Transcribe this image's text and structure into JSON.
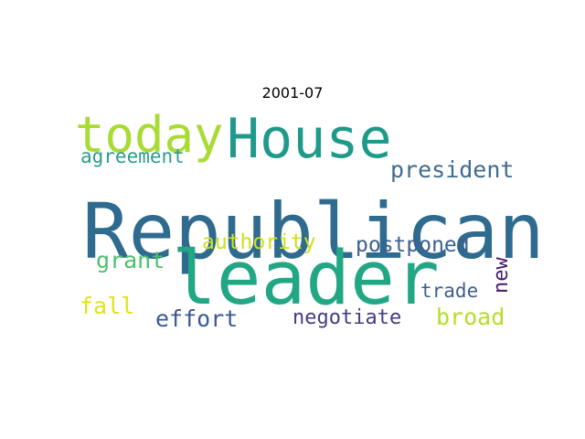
{
  "chart_data": {
    "type": "wordcloud",
    "title": "2001-07",
    "words": [
      {
        "text": "Republican",
        "weight": 1.0,
        "color": "#2f6a8f",
        "rotated": false
      },
      {
        "text": "leader",
        "weight": 0.97,
        "color": "#22a784",
        "rotated": false
      },
      {
        "text": "House",
        "weight": 0.7,
        "color": "#1f9a8a",
        "rotated": false
      },
      {
        "text": "today",
        "weight": 0.64,
        "color": "#a8db34",
        "rotated": false
      },
      {
        "text": "president",
        "weight": 0.3,
        "color": "#3f6b8f",
        "rotated": false
      },
      {
        "text": "postponed",
        "weight": 0.27,
        "color": "#3c6190",
        "rotated": false
      },
      {
        "text": "authority",
        "weight": 0.27,
        "color": "#cfe11c",
        "rotated": false
      },
      {
        "text": "grant",
        "weight": 0.27,
        "color": "#4ac16d",
        "rotated": false
      },
      {
        "text": "agreement",
        "weight": 0.25,
        "color": "#2a9d8b",
        "rotated": false
      },
      {
        "text": "fall",
        "weight": 0.27,
        "color": "#dfe318",
        "rotated": false
      },
      {
        "text": "effort",
        "weight": 0.27,
        "color": "#3a5a92",
        "rotated": false
      },
      {
        "text": "negotiate",
        "weight": 0.24,
        "color": "#433d84",
        "rotated": false
      },
      {
        "text": "broad",
        "weight": 0.27,
        "color": "#b5de2b",
        "rotated": false
      },
      {
        "text": "trade",
        "weight": 0.22,
        "color": "#3e5f8c",
        "rotated": false
      },
      {
        "text": "new",
        "weight": 0.24,
        "color": "#48186a",
        "rotated": true
      }
    ]
  }
}
